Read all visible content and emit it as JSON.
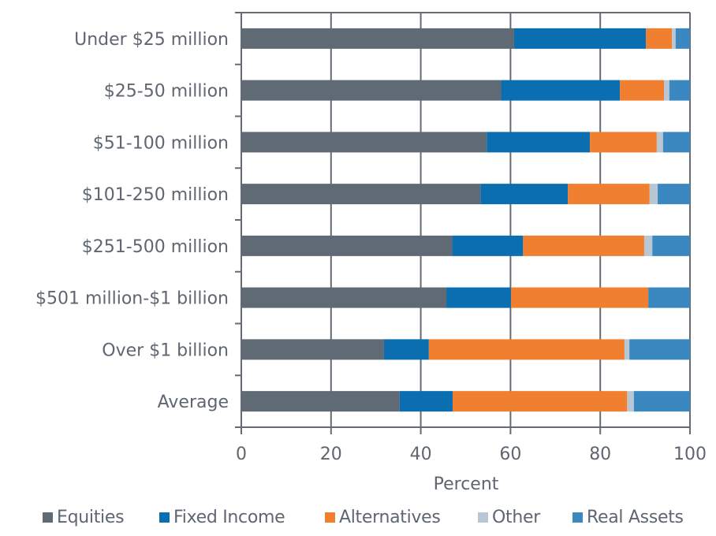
{
  "chart_data": {
    "type": "bar",
    "orientation": "horizontal",
    "stacked": true,
    "title": "",
    "xlabel": "Percent",
    "ylabel": "",
    "xlim": [
      0,
      100
    ],
    "xticks": [
      "0",
      "20",
      "40",
      "60",
      "80",
      "100"
    ],
    "grid": true,
    "legend_position": "bottom",
    "categories": [
      "Under $25 million",
      "$25-50 million",
      "$51-100 million",
      "$101-250 million",
      "$251-500 million",
      "$501 million-$1 billion",
      "Over $1 billion",
      "Average"
    ],
    "series": [
      {
        "name": "Equities",
        "color": "#5f6a74",
        "values": [
          60.8,
          57.9,
          54.7,
          53.3,
          47.0,
          45.7,
          31.8,
          35.3
        ]
      },
      {
        "name": "Fixed Income",
        "color": "#0a6eb0",
        "values": [
          29.4,
          26.5,
          23.0,
          19.5,
          15.8,
          14.4,
          10.0,
          11.8
        ]
      },
      {
        "name": "Alternatives",
        "color": "#f07f30",
        "values": [
          5.8,
          9.8,
          14.9,
          18.2,
          27.0,
          30.6,
          43.6,
          38.9
        ]
      },
      {
        "name": "Other",
        "color": "#b8c7d3",
        "values": [
          0.8,
          1.2,
          1.4,
          1.8,
          1.8,
          0.0,
          1.1,
          1.5
        ]
      },
      {
        "name": "Real Assets",
        "color": "#3b88c0",
        "values": [
          3.2,
          4.6,
          6.0,
          7.2,
          8.4,
          9.3,
          13.5,
          12.5
        ]
      }
    ]
  },
  "legend": {
    "items": [
      {
        "label": "Equities",
        "color": "#5f6a74"
      },
      {
        "label": "Fixed Income",
        "color": "#0a6eb0"
      },
      {
        "label": "Alternatives",
        "color": "#f07f30"
      },
      {
        "label": "Other",
        "color": "#b8c7d3"
      },
      {
        "label": "Real Assets",
        "color": "#3b88c0"
      }
    ]
  },
  "colors": {
    "axis": "#646b74",
    "text": "#5f6670"
  }
}
